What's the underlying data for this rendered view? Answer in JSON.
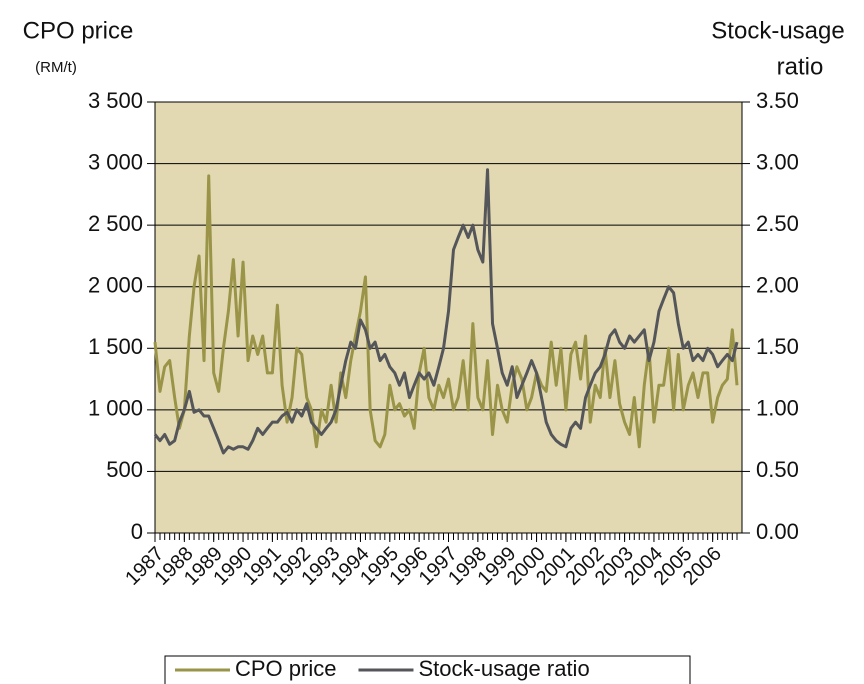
{
  "chart_data": {
    "type": "line",
    "y_label": "CPO price",
    "y_unit": "(RM/t)",
    "y2_label_line1": "Stock-usage",
    "y2_label_line2": "ratio",
    "xlim": [
      1987,
      2007
    ],
    "xticks": [
      1987,
      1988,
      1989,
      1990,
      1991,
      1992,
      1993,
      1994,
      1995,
      1996,
      1997,
      1998,
      1999,
      2000,
      2001,
      2002,
      2003,
      2004,
      2005,
      2006
    ],
    "ylim": [
      0,
      3500
    ],
    "yticks": [
      0,
      500,
      {
        "value": 1000,
        "label": "1 000"
      },
      {
        "value": 1500,
        "label": "1 500"
      },
      {
        "value": 2000,
        "label": "2 000"
      },
      {
        "value": 2500,
        "label": "2 500"
      },
      {
        "value": 3000,
        "label": "3 000"
      },
      {
        "value": 3500,
        "label": "3 500"
      }
    ],
    "y2lim": [
      0,
      3.5
    ],
    "y2ticks": [
      {
        "value": 0,
        "label": "0.00"
      },
      {
        "value": 0.5,
        "label": "0.50"
      },
      {
        "value": 1,
        "label": "1.00"
      },
      {
        "value": 1.5,
        "label": "1.50"
      },
      {
        "value": 2,
        "label": "2.00"
      },
      {
        "value": 2.5,
        "label": "2.50"
      },
      {
        "value": 3,
        "label": "3.00"
      },
      {
        "value": 3.5,
        "label": "3.50"
      }
    ],
    "grid": true,
    "plot_background": "#e2d9b2",
    "legend": "bottom",
    "x": [
      1987,
      1987.17,
      1987.33,
      1987.5,
      1987.67,
      1987.83,
      1988,
      1988.17,
      1988.33,
      1988.5,
      1988.67,
      1988.83,
      1989,
      1989.17,
      1989.33,
      1989.5,
      1989.67,
      1989.83,
      1990,
      1990.17,
      1990.33,
      1990.5,
      1990.67,
      1990.83,
      1991,
      1991.17,
      1991.33,
      1991.5,
      1991.67,
      1991.83,
      1992,
      1992.17,
      1992.33,
      1992.5,
      1992.67,
      1992.83,
      1993,
      1993.17,
      1993.33,
      1993.5,
      1993.67,
      1993.83,
      1994,
      1994.17,
      1994.33,
      1994.5,
      1994.67,
      1994.83,
      1995,
      1995.17,
      1995.33,
      1995.5,
      1995.67,
      1995.83,
      1996,
      1996.17,
      1996.33,
      1996.5,
      1996.67,
      1996.83,
      1997,
      1997.17,
      1997.33,
      1997.5,
      1997.67,
      1997.83,
      1998,
      1998.17,
      1998.33,
      1998.5,
      1998.67,
      1998.83,
      1999,
      1999.17,
      1999.33,
      1999.5,
      1999.67,
      1999.83,
      2000,
      2000.17,
      2000.33,
      2000.5,
      2000.67,
      2000.83,
      2001,
      2001.17,
      2001.33,
      2001.5,
      2001.67,
      2001.83,
      2002,
      2002.17,
      2002.33,
      2002.5,
      2002.67,
      2002.83,
      2003,
      2003.17,
      2003.33,
      2003.5,
      2003.67,
      2003.83,
      2004,
      2004.17,
      2004.33,
      2004.5,
      2004.67,
      2004.83,
      2005,
      2005.17,
      2005.33,
      2005.5,
      2005.67,
      2005.83,
      2006,
      2006.17,
      2006.33,
      2006.5,
      2006.67,
      2006.83
    ],
    "series": [
      {
        "name": "CPO price",
        "color": "#9a9448",
        "values": [
          1550,
          1150,
          1350,
          1400,
          1100,
          850,
          1000,
          1600,
          2000,
          2250,
          1400,
          2900,
          1300,
          1150,
          1500,
          1800,
          2220,
          1600,
          2200,
          1400,
          1600,
          1450,
          1600,
          1300,
          1300,
          1850,
          1200,
          900,
          1100,
          1500,
          1450,
          1100,
          1000,
          700,
          1000,
          900,
          1200,
          900,
          1300,
          1100,
          1400,
          1600,
          1800,
          2080,
          1000,
          750,
          700,
          800,
          1200,
          1000,
          1050,
          950,
          1000,
          850,
          1300,
          1500,
          1100,
          1000,
          1200,
          1100,
          1250,
          1000,
          1100,
          1400,
          1000,
          1700,
          1100,
          1000,
          1400,
          800,
          1200,
          1000,
          900,
          1200,
          1350,
          1250,
          1000,
          1100,
          1300,
          1200,
          1150,
          1550,
          1200,
          1500,
          1000,
          1450,
          1550,
          1250,
          1600,
          900,
          1200,
          1100,
          1500,
          1100,
          1400,
          1050,
          900,
          800,
          1100,
          700,
          1200,
          1500,
          900,
          1200,
          1200,
          1500,
          1000,
          1450,
          1000,
          1200,
          1300,
          1100,
          1300,
          1300,
          900,
          1100,
          1200,
          1250,
          1650,
          1200
        ]
      },
      {
        "name": "Stock-usage ratio",
        "color": "#55565a",
        "axis": "y2",
        "values": [
          0.8,
          0.75,
          0.8,
          0.72,
          0.75,
          0.9,
          1.0,
          1.15,
          0.98,
          1.0,
          0.95,
          0.95,
          0.85,
          0.75,
          0.65,
          0.7,
          0.68,
          0.7,
          0.7,
          0.68,
          0.75,
          0.85,
          0.8,
          0.85,
          0.9,
          0.9,
          0.95,
          0.98,
          0.9,
          1.0,
          0.95,
          1.05,
          0.9,
          0.85,
          0.8,
          0.85,
          0.9,
          1.0,
          1.2,
          1.4,
          1.55,
          1.5,
          1.73,
          1.65,
          1.5,
          1.55,
          1.4,
          1.45,
          1.35,
          1.3,
          1.2,
          1.3,
          1.1,
          1.2,
          1.3,
          1.25,
          1.3,
          1.2,
          1.35,
          1.5,
          1.8,
          2.3,
          2.4,
          2.5,
          2.4,
          2.5,
          2.3,
          2.2,
          2.95,
          1.7,
          1.5,
          1.3,
          1.2,
          1.35,
          1.1,
          1.2,
          1.3,
          1.4,
          1.3,
          1.1,
          0.9,
          0.8,
          0.75,
          0.72,
          0.7,
          0.85,
          0.9,
          0.85,
          1.1,
          1.2,
          1.3,
          1.35,
          1.45,
          1.6,
          1.65,
          1.55,
          1.5,
          1.6,
          1.55,
          1.6,
          1.65,
          1.4,
          1.55,
          1.8,
          1.9,
          2.0,
          1.95,
          1.7,
          1.5,
          1.55,
          1.4,
          1.45,
          1.4,
          1.5,
          1.45,
          1.35,
          1.4,
          1.45,
          1.4,
          1.55
        ]
      }
    ]
  }
}
